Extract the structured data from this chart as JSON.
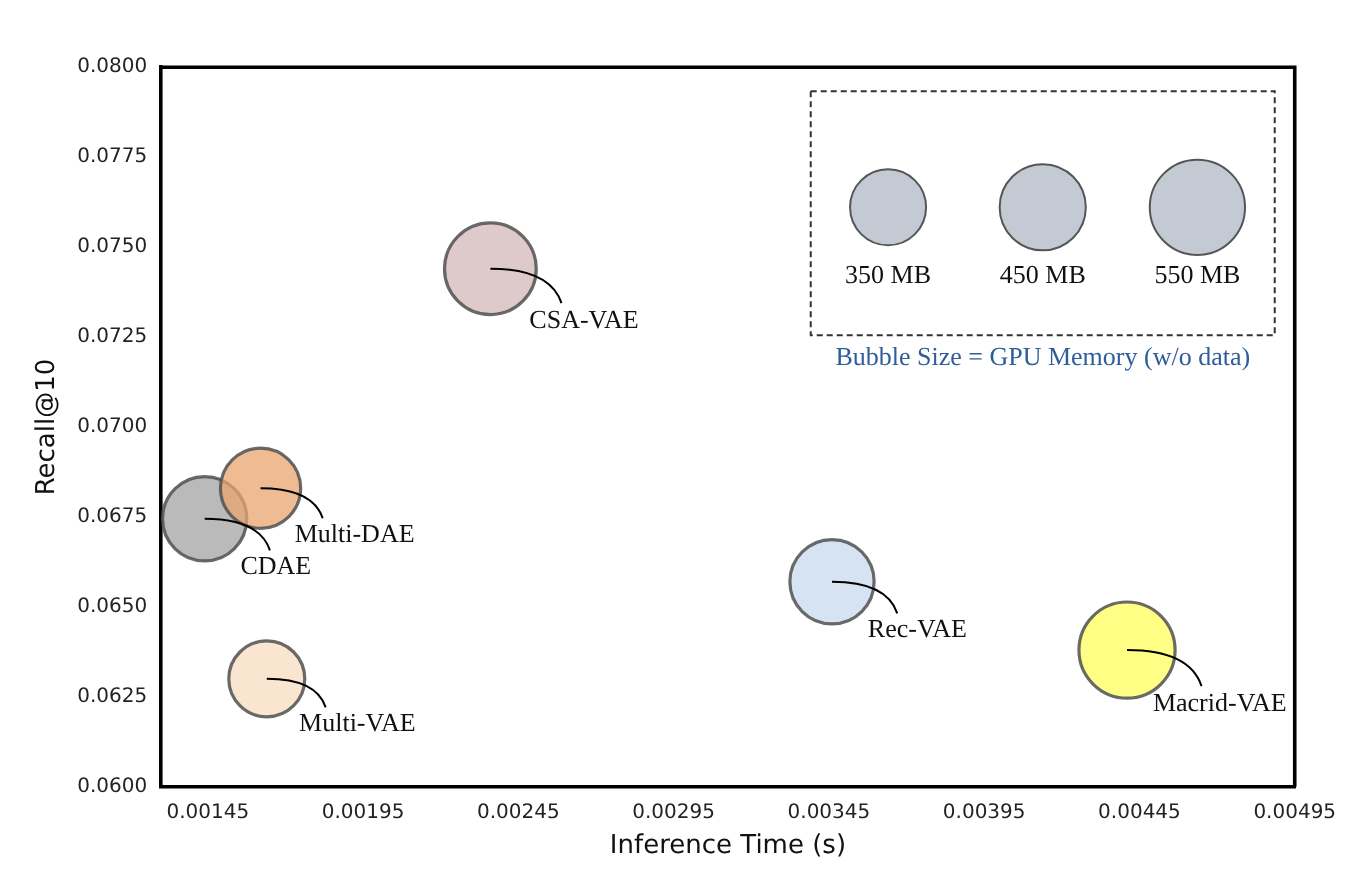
{
  "chart_data": {
    "type": "bubble",
    "xlabel": "Inference Time (s)",
    "ylabel": "Recall@10",
    "legend_title": "Bubble Size = GPU Memory (w/o data)",
    "size_legend": [
      {
        "value": 350,
        "label": "350 MB"
      },
      {
        "value": 450,
        "label": "450 MB"
      },
      {
        "value": 550,
        "label": "550 MB"
      }
    ],
    "series": [
      {
        "name": "CSA-VAE",
        "color": "#d4b8ba",
        "x": [
          0.00236
        ],
        "values": [
          0.0744
        ],
        "sizes": [
          510
        ]
      },
      {
        "name": "Multi-DAE",
        "color": "#e9a46e",
        "x": [
          0.00162
        ],
        "values": [
          0.0683
        ],
        "sizes": [
          390
        ]
      },
      {
        "name": "CDAE",
        "color": "#a3a3a3",
        "x": [
          0.00144
        ],
        "values": [
          0.06745
        ],
        "sizes": [
          430
        ]
      },
      {
        "name": "Multi-VAE",
        "color": "#f8dcc0",
        "x": [
          0.00164
        ],
        "values": [
          0.063
        ],
        "sizes": [
          350
        ]
      },
      {
        "name": "Rec-VAE",
        "color": "#c8daef",
        "x": [
          0.00346
        ],
        "values": [
          0.0657
        ],
        "sizes": [
          430
        ]
      },
      {
        "name": "Macrid-VAE",
        "color": "#ffff5e",
        "x": [
          0.00441
        ],
        "values": [
          0.0638
        ],
        "sizes": [
          560
        ]
      }
    ],
    "xlim": [
      0.0013,
      0.00495
    ],
    "xticks": [
      0.00145,
      0.00195,
      0.00245,
      0.00295,
      0.00345,
      0.00395,
      0.00445,
      0.00495
    ],
    "ylim": [
      0.06,
      0.08
    ],
    "yticks": [
      {
        "value": 0.06,
        "label": "0.0600"
      },
      {
        "value": 0.0625,
        "label": "0.0625"
      },
      {
        "value": 0.065,
        "label": "0.0650"
      },
      {
        "value": 0.0675,
        "label": "0.0675"
      },
      {
        "value": 0.07,
        "label": "0.0700"
      },
      {
        "value": 0.0725,
        "label": "0.0725"
      },
      {
        "value": 0.075,
        "label": "0.0750"
      },
      {
        "value": 0.0775,
        "label": "0.0775"
      },
      {
        "value": 0.08,
        "label": "0.0800"
      }
    ],
    "grid": false
  }
}
